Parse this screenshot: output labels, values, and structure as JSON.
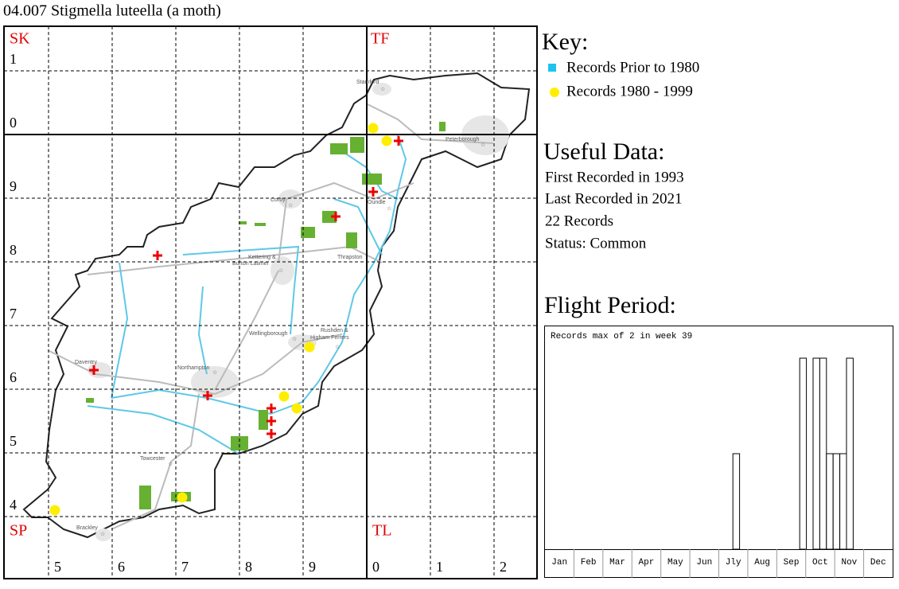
{
  "title": "04.007 Stigmella luteella (a moth)",
  "map": {
    "squares": [
      "SK",
      "TF",
      "SP",
      "TL"
    ],
    "row_labels": [
      "1",
      "0",
      "9",
      "8",
      "7",
      "6",
      "5",
      "4"
    ],
    "col_labels": [
      "5",
      "6",
      "7",
      "8",
      "9",
      "0",
      "1",
      "2"
    ],
    "places": [
      "Stamford",
      "Peterborough",
      "Corby",
      "Oundle",
      "Kettering &",
      "Burton Latimer",
      "Thrapston",
      "Wellingborough",
      "Rushden &",
      "Higham Ferrers",
      "Daventry",
      "Northampton",
      "Towcester",
      "Brackley"
    ]
  },
  "key": {
    "title": "Key:",
    "items": [
      "Records Prior to 1980",
      "Records 1980 - 1999"
    ]
  },
  "useful_data": {
    "title": "Useful Data:",
    "lines": [
      "First Recorded in 1993",
      "Last Recorded in 2021",
      "22 Records",
      "Status: Common"
    ]
  },
  "chart_data": {
    "type": "bar",
    "title": "Flight Period:",
    "subtitle": "Records max of 2 in week 39",
    "months": [
      "Jan",
      "Feb",
      "Mar",
      "Apr",
      "May",
      "Jun",
      "Jly",
      "Aug",
      "Sep",
      "Oct",
      "Nov",
      "Dec"
    ],
    "x": [
      29,
      39,
      41,
      42,
      43,
      44,
      45,
      46
    ],
    "values": [
      1,
      2,
      2,
      2,
      1,
      1,
      1,
      2
    ],
    "color": "#ffffff"
  }
}
